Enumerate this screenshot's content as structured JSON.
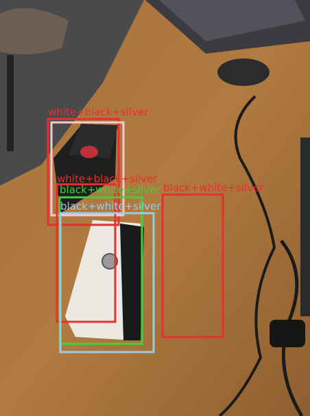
{
  "detections": [
    {
      "label": "white+black+silver"
    },
    {
      "label": "white+black+silver"
    },
    {
      "label": "black+white+silver"
    },
    {
      "label": "black+white+silver"
    },
    {
      "label": "black+white+silver"
    }
  ]
}
